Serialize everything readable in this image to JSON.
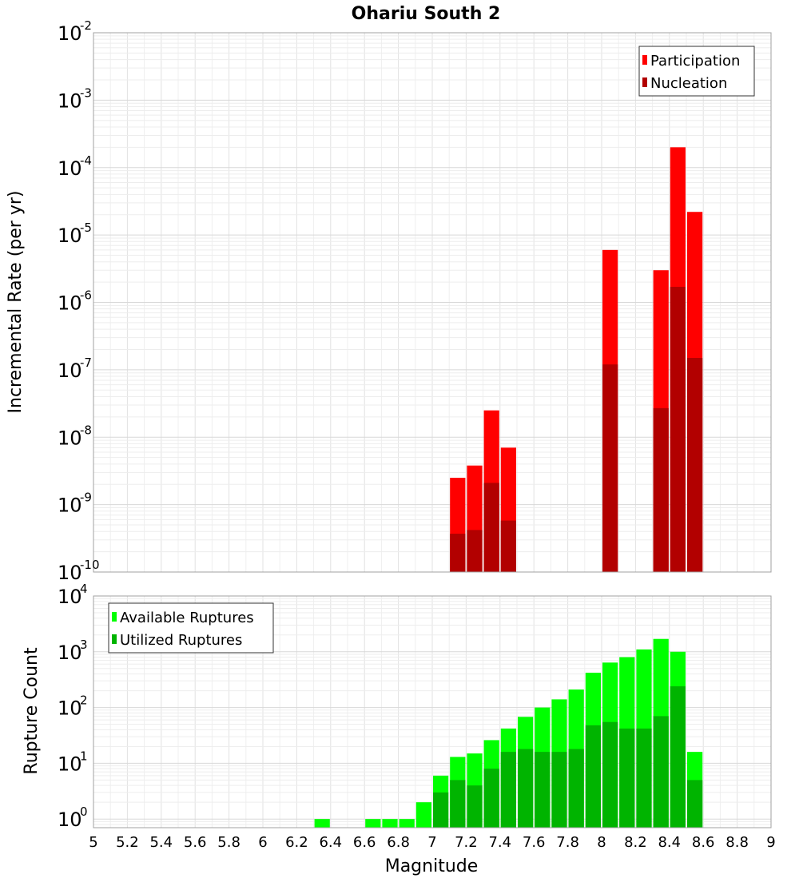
{
  "chart_data": [
    {
      "type": "bar",
      "title": "Ohariu South 2",
      "xlabel": "",
      "ylabel": "Incremental Rate (per yr)",
      "xlim": [
        5,
        9
      ],
      "ylim": [
        1e-10,
        0.01
      ],
      "yscale": "log",
      "grid": true,
      "legend_position": "top-right",
      "bin_width": 0.1,
      "y_ticks": [
        {
          "base": "10",
          "exp": "-10",
          "value": 1e-10
        },
        {
          "base": "10",
          "exp": "-9",
          "value": 1e-09
        },
        {
          "base": "10",
          "exp": "-8",
          "value": 1e-08
        },
        {
          "base": "10",
          "exp": "-7",
          "value": 1e-07
        },
        {
          "base": "10",
          "exp": "-6",
          "value": 1e-06
        },
        {
          "base": "10",
          "exp": "-5",
          "value": 1e-05
        },
        {
          "base": "10",
          "exp": "-4",
          "value": 0.0001
        },
        {
          "base": "10",
          "exp": "-3",
          "value": 0.001
        },
        {
          "base": "10",
          "exp": "-2",
          "value": 0.01
        }
      ],
      "series": [
        {
          "name": "Participation",
          "color": "#ff0000",
          "x": [
            7.15,
            7.25,
            7.35,
            7.45,
            8.05,
            8.35,
            8.45,
            8.55
          ],
          "values": [
            2.5e-09,
            3.8e-09,
            2.5e-08,
            7e-09,
            6e-06,
            3e-06,
            0.0002,
            2.2e-05
          ]
        },
        {
          "name": "Nucleation",
          "color": "#b20000",
          "x": [
            7.15,
            7.25,
            7.35,
            7.45,
            8.05,
            8.35,
            8.45,
            8.55
          ],
          "values": [
            3.7e-10,
            4.2e-10,
            2.1e-09,
            5.8e-10,
            1.2e-07,
            2.7e-08,
            1.7e-06,
            1.5e-07
          ]
        }
      ]
    },
    {
      "type": "bar",
      "title": "",
      "xlabel": "Magnitude",
      "ylabel": "Rupture Count",
      "xlim": [
        5,
        9
      ],
      "ylim": [
        0.7,
        10000
      ],
      "yscale": "log",
      "grid": true,
      "legend_position": "top-left",
      "bin_width": 0.1,
      "x_ticks": [
        "5",
        "5.2",
        "5.4",
        "5.6",
        "5.8",
        "6",
        "6.2",
        "6.4",
        "6.6",
        "6.8",
        "7",
        "7.2",
        "7.4",
        "7.6",
        "7.8",
        "8",
        "8.2",
        "8.4",
        "8.6",
        "8.8",
        "9"
      ],
      "y_ticks": [
        {
          "base": "10",
          "exp": "0",
          "value": 1
        },
        {
          "base": "10",
          "exp": "1",
          "value": 10
        },
        {
          "base": "10",
          "exp": "2",
          "value": 100
        },
        {
          "base": "10",
          "exp": "3",
          "value": 1000
        },
        {
          "base": "10",
          "exp": "4",
          "value": 10000
        }
      ],
      "series": [
        {
          "name": "Available Ruptures",
          "color": "#00ff00",
          "x": [
            6.35,
            6.65,
            6.75,
            6.85,
            6.95,
            7.05,
            7.15,
            7.25,
            7.35,
            7.45,
            7.55,
            7.65,
            7.75,
            7.85,
            7.95,
            8.05,
            8.15,
            8.25,
            8.35,
            8.45,
            8.55
          ],
          "values": [
            1,
            1,
            1,
            1,
            2,
            6,
            13,
            15,
            26,
            42,
            68,
            100,
            140,
            210,
            420,
            640,
            800,
            1100,
            1700,
            1000,
            16
          ]
        },
        {
          "name": "Utilized Ruptures",
          "color": "#00b400",
          "x": [
            7.05,
            7.15,
            7.25,
            7.35,
            7.45,
            7.55,
            7.65,
            7.75,
            7.85,
            7.95,
            8.05,
            8.15,
            8.25,
            8.35,
            8.45,
            8.55
          ],
          "values": [
            3,
            5,
            4,
            8,
            16,
            18,
            16,
            16,
            18,
            48,
            55,
            42,
            42,
            70,
            240,
            5
          ]
        }
      ]
    }
  ]
}
